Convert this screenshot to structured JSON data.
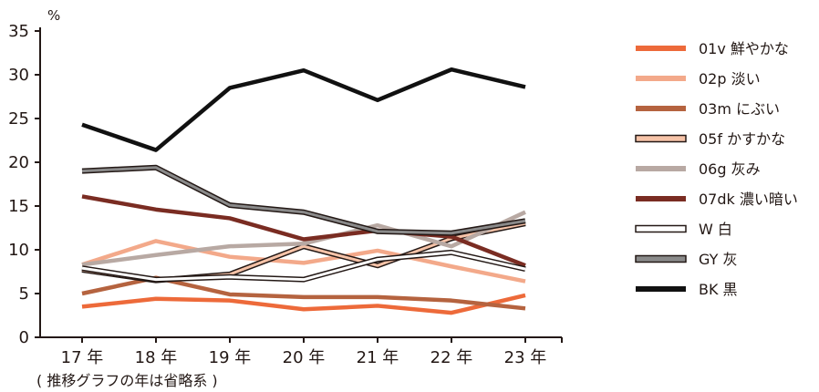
{
  "chart_data": {
    "type": "line",
    "ylabel": "%",
    "note": "( 推移グラフの年は省略系 )",
    "ylim": [
      0,
      35
    ],
    "yticks": [
      0,
      5,
      10,
      15,
      20,
      25,
      30,
      35
    ],
    "categories": [
      "17 年",
      "18 年",
      "19 年",
      "20 年",
      "21 年",
      "22 年",
      "23 年"
    ],
    "grid": false,
    "legend_position": "right",
    "series": [
      {
        "name": "01v 鮮やかな",
        "style": "solid",
        "color": "#ED6A3A",
        "values": [
          3.5,
          4.4,
          4.2,
          3.2,
          3.6,
          2.8,
          4.8
        ]
      },
      {
        "name": "02p 淡い",
        "style": "solid",
        "color": "#F3A98A",
        "values": [
          8.3,
          11.0,
          9.2,
          8.5,
          9.9,
          8.1,
          6.4
        ]
      },
      {
        "name": "03m にぶい",
        "style": "solid",
        "color": "#B5633F",
        "values": [
          5.0,
          6.8,
          4.9,
          4.6,
          4.6,
          4.2,
          3.3
        ]
      },
      {
        "name": "05f かすかな",
        "style": "outline",
        "color": "#F6C3A8",
        "values": [
          7.7,
          6.5,
          7.2,
          10.4,
          8.2,
          11.3,
          13.0
        ]
      },
      {
        "name": "06g 灰み",
        "style": "solid",
        "color": "#B8A9A3",
        "values": [
          8.3,
          9.4,
          10.4,
          10.7,
          12.8,
          10.4,
          14.3
        ]
      },
      {
        "name": "07dk 濃い暗い",
        "style": "solid",
        "color": "#7A2C22",
        "values": [
          16.1,
          14.6,
          13.6,
          11.2,
          12.2,
          11.5,
          8.2
        ]
      },
      {
        "name": "W 白",
        "style": "outline",
        "color": "#FFFFFF",
        "values": [
          7.9,
          6.6,
          6.9,
          6.6,
          8.9,
          9.7,
          7.8
        ]
      },
      {
        "name": "GY 灰",
        "style": "outline",
        "color": "#8A8A8A",
        "values": [
          19.0,
          19.4,
          15.1,
          14.3,
          12.1,
          11.9,
          13.3
        ]
      },
      {
        "name": "BK 黒",
        "style": "solid",
        "color": "#111111",
        "values": [
          24.3,
          21.4,
          28.5,
          30.5,
          27.1,
          30.6,
          28.6
        ]
      }
    ]
  }
}
